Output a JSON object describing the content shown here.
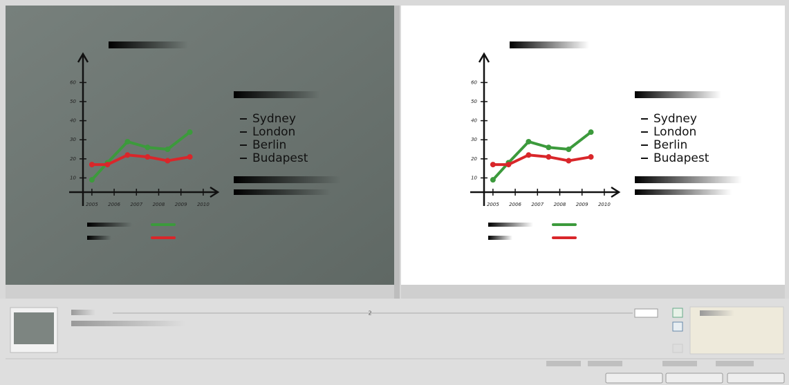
{
  "chart_data": {
    "type": "line",
    "x": [
      2005,
      2005.7,
      2006.6,
      2007.5,
      2008.4,
      2009.4
    ],
    "series": [
      {
        "color": "#3c9a3c",
        "values": [
          9,
          18,
          29,
          26,
          25,
          34
        ]
      },
      {
        "color": "#d9262a",
        "values": [
          17,
          17,
          22,
          21,
          19,
          21
        ]
      }
    ],
    "xlim": [
      2004.6,
      2010.5
    ],
    "xticks": [
      2005,
      2006,
      2007,
      2008,
      2009,
      2010
    ],
    "ylim": [
      0,
      75
    ],
    "yticks": [
      10,
      20,
      30,
      40,
      50,
      60
    ],
    "annotations": [
      "Sydney",
      "London",
      "Berlin",
      "Budapest"
    ]
  },
  "player": {
    "frame": "2"
  }
}
